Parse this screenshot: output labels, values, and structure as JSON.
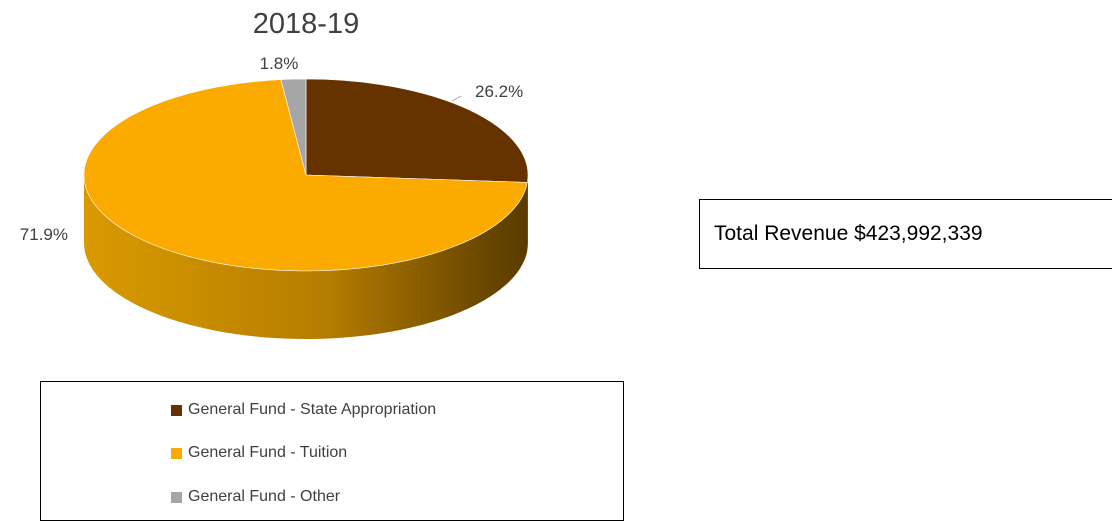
{
  "chart_data": {
    "type": "pie",
    "style": "3d",
    "title": "2018-19",
    "labels": [
      "General Fund - State Appropriation",
      "General Fund - Tuition",
      "General Fund - Other"
    ],
    "values": [
      26.2,
      71.9,
      1.8
    ],
    "data_labels": [
      "26.2%",
      "71.9%",
      "1.8%"
    ],
    "colors": [
      "#663300",
      "#FBAA00",
      "#A6A6A6"
    ],
    "start_angle_degrees": 0,
    "legend_position": "bottom"
  },
  "summary": {
    "total_revenue": "Total Revenue $423,992,339"
  }
}
